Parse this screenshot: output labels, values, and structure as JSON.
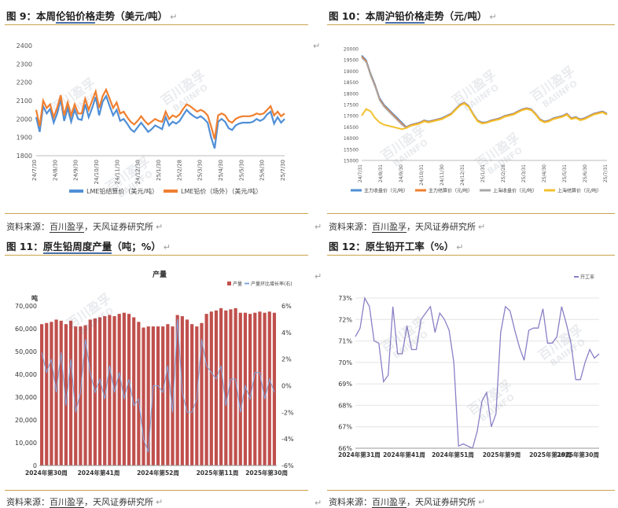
{
  "captions": [
    {
      "prefix": "图 9：本周",
      "em": "伦铅价格",
      "suffix": "走势（美元/吨）"
    },
    {
      "prefix": "图 10：本周",
      "em": "沪铅价格",
      "suffix": "走势（元/吨）"
    },
    {
      "prefix": "图 11：",
      "em": "原生铅周度产量",
      "suffix": "（吨；%）"
    },
    {
      "prefix": "图 12：原生铅开工率（%）",
      "em": "",
      "suffix": ""
    }
  ],
  "source": {
    "prefix": "资料来源：",
    "em": "百川盈孚",
    "suffix": "，天风证券研究所"
  },
  "para_mark": "↵",
  "watermark": {
    "cn": "百川盈孚",
    "en": "BAIINFO"
  },
  "chart_data": [
    {
      "type": "line",
      "x_ticks": [
        "24/7/30",
        "24/8/30",
        "24/9/30",
        "24/10/30",
        "24/11/30",
        "24/12/30",
        "25/1/30",
        "25/2/28",
        "25/3/30",
        "25/4/30",
        "25/5/30",
        "25/6/30",
        "25/7/30"
      ],
      "ylim": [
        1800,
        2400
      ],
      "y_ticks": [
        1800,
        1900,
        2000,
        2100,
        2200,
        2300,
        2400
      ],
      "legend": "bottom",
      "series": [
        {
          "name": "LME铅结算价（美元/吨）",
          "color": "#4f8fd6",
          "values": [
            2010,
            1930,
            2070,
            2030,
            2055,
            1980,
            2030,
            2110,
            1990,
            2060,
            1985,
            2050,
            2000,
            1995,
            2080,
            2010,
            2060,
            2120,
            2020,
            2095,
            2125,
            2070,
            2020,
            2050,
            1990,
            2000,
            1975,
            1945,
            1930,
            1955,
            1980,
            1955,
            1930,
            1945,
            1965,
            1955,
            1945,
            2010,
            1965,
            1985,
            1975,
            1990,
            2020,
            2050,
            2030,
            2015,
            2005,
            2015,
            2000,
            1980,
            1900,
            1840,
            1985,
            2000,
            1985,
            1950,
            1940,
            1965,
            1975,
            1980,
            1980,
            1980,
            1985,
            2000,
            1990,
            2000,
            2025,
            2040,
            1975,
            2010,
            1980,
            2000
          ]
        },
        {
          "name": "LME铅价（场外）（美元/吨）",
          "color": "#f07f2f",
          "values": [
            2050,
            1960,
            2100,
            2060,
            2080,
            2010,
            2060,
            2130,
            2020,
            2090,
            2020,
            2080,
            2030,
            2030,
            2110,
            2050,
            2100,
            2150,
            2060,
            2125,
            2160,
            2110,
            2060,
            2090,
            2030,
            2040,
            2010,
            1985,
            1970,
            1990,
            2015,
            1990,
            1970,
            1985,
            2000,
            1990,
            1985,
            2040,
            2000,
            2020,
            2010,
            2025,
            2055,
            2080,
            2070,
            2055,
            2040,
            2050,
            2040,
            2020,
            1960,
            1890,
            2020,
            2030,
            2020,
            1990,
            1980,
            2000,
            2010,
            2015,
            2015,
            2015,
            2020,
            2030,
            2025,
            2030,
            2050,
            2070,
            2020,
            2040,
            2015,
            2030
          ]
        }
      ]
    },
    {
      "type": "line",
      "x_ticks": [
        "24/7/31",
        "24/8/31",
        "24/9/30",
        "24/10/31",
        "24/11/30",
        "24/12/31",
        "25/1/31",
        "25/2/28",
        "25/3/31",
        "25/4/30",
        "25/5/31",
        "25/6/30",
        "25/7/31"
      ],
      "ylim": [
        15000,
        20000
      ],
      "y_ticks": [
        15000,
        15500,
        16000,
        16500,
        17000,
        17500,
        18000,
        18500,
        19000,
        19500,
        20000
      ],
      "legend": "bottom",
      "series": [
        {
          "name": "主力收盘价（元/吨）",
          "color": "#4f8fd6",
          "values": [
            19700,
            19500,
            18900,
            18400,
            17800,
            17500,
            17300,
            17100,
            16900,
            16700,
            16500,
            16600,
            16650,
            16700,
            16800,
            16750,
            16800,
            16850,
            16900,
            17000,
            17100,
            17300,
            17500,
            17600,
            17450,
            17100,
            16800,
            16700,
            16720,
            16800,
            16850,
            16900,
            17000,
            17050,
            17100,
            17200,
            17300,
            17350,
            17300,
            17100,
            16850,
            16750,
            16800,
            16900,
            16950,
            17000,
            17100,
            16900,
            16950,
            16850,
            16900,
            17000,
            17100,
            17150,
            17200,
            17100
          ]
        },
        {
          "name": "主力结算价（元/吨）",
          "color": "#f07f2f",
          "values": [
            19650,
            19450,
            18850,
            18350,
            17750,
            17450,
            17250,
            17050,
            16850,
            16650,
            16480,
            16580,
            16630,
            16680,
            16780,
            16730,
            16780,
            16830,
            16880,
            16980,
            17080,
            17280,
            17480,
            17580,
            17430,
            17080,
            16780,
            16680,
            16700,
            16780,
            16830,
            16880,
            16980,
            17030,
            17080,
            17180,
            17280,
            17330,
            17280,
            17080,
            16830,
            16730,
            16780,
            16880,
            16930,
            16980,
            17080,
            16880,
            16930,
            16830,
            16880,
            16980,
            17080,
            17130,
            17180,
            17080
          ]
        },
        {
          "name": "上海收盘价（元/吨）",
          "color": "#a9a9a9",
          "values": [
            19600,
            19400,
            18800,
            18300,
            17700,
            17400,
            17200,
            17000,
            16800,
            16600,
            16450,
            16550,
            16600,
            16650,
            16750,
            16700,
            16750,
            16800,
            16850,
            16950,
            17050,
            17250,
            17450,
            17550,
            17400,
            17050,
            16750,
            16650,
            16680,
            16750,
            16800,
            16850,
            16950,
            17000,
            17050,
            17150,
            17250,
            17300,
            17250,
            17050,
            16800,
            16700,
            16750,
            16850,
            16900,
            16950,
            17050,
            16850,
            16900,
            16800,
            16850,
            16950,
            17050,
            17100,
            17150,
            17050
          ]
        },
        {
          "name": "上海结算价（元/吨）",
          "color": "#f2c12e",
          "values": [
            17000,
            17300,
            17200,
            16900,
            16700,
            16600,
            16550,
            16500,
            16450,
            16400,
            16450,
            16550,
            16600,
            16650,
            16750,
            16700,
            16750,
            16800,
            16850,
            16950,
            17050,
            17250,
            17450,
            17550,
            17400,
            17050,
            16750,
            16650,
            16680,
            16750,
            16800,
            16850,
            16950,
            17000,
            17050,
            17150,
            17250,
            17300,
            17250,
            17050,
            16800,
            16700,
            16750,
            16850,
            16900,
            16950,
            17050,
            16850,
            16900,
            16800,
            16850,
            16950,
            17050,
            17100,
            17150,
            17050
          ]
        }
      ]
    },
    {
      "type": "bar",
      "title": "产量",
      "left_unit": "吨",
      "x_ticks": [
        "2024年第30周",
        "2024年第41周",
        "2024年第52周",
        "2025年第11周",
        "2025年第30周"
      ],
      "ylim": [
        0,
        70000
      ],
      "y_ticks": [
        0,
        10000,
        20000,
        30000,
        40000,
        50000,
        60000,
        70000
      ],
      "y2lim": [
        -6,
        6
      ],
      "y2_ticks": [
        "-6%",
        "-4%",
        "-2%",
        "0%",
        "2%",
        "4%",
        "6%"
      ],
      "legend": "top-right",
      "series": [
        {
          "name": "产量",
          "color": "#c0504d",
          "values": [
            62000,
            62500,
            63000,
            64000,
            63500,
            62000,
            63500,
            61000,
            61000,
            61500,
            64000,
            64500,
            65000,
            65500,
            66000,
            65500,
            66500,
            67000,
            66500,
            65000,
            63000,
            60500,
            61000,
            61000,
            61000,
            61000,
            62000,
            61000,
            66000,
            65500,
            64000,
            62000,
            61000,
            62500,
            66500,
            67500,
            68000,
            69000,
            68000,
            68500,
            69000,
            67000,
            67000,
            66500,
            67000,
            67500,
            67000,
            67500,
            67000
          ]
        },
        {
          "name": "产量环比增长率(右)",
          "color": "#7ea6e0",
          "values": [
            2.5,
            1.0,
            2.0,
            -0.5,
            2.5,
            -1.5,
            2.0,
            -2.0,
            -0.5,
            3.5,
            1.0,
            -0.5,
            0.5,
            -1.0,
            1.5,
            -0.5,
            1.0,
            -1.0,
            0.5,
            -1.5,
            -1.0,
            -4.0,
            -5.0,
            0.0,
            0.0,
            -0.5,
            1.5,
            -2.0,
            5.0,
            -0.5,
            -2.0,
            -2.0,
            -1.0,
            3.5,
            1.5,
            1.0,
            0.5,
            1.5,
            -1.5,
            0.5,
            0.5,
            -2.0,
            0.0,
            -1.0,
            1.0,
            1.0,
            -1.0,
            0.5,
            -0.5
          ]
        }
      ]
    },
    {
      "type": "line",
      "x_ticks": [
        "2024年第31周",
        "2024年第41周",
        "2024年第51周",
        "2025年第9周",
        "2025年第19周",
        "2025年第30周"
      ],
      "ylim": [
        66,
        73
      ],
      "y_ticks": [
        "66%",
        "67%",
        "68%",
        "69%",
        "70%",
        "71%",
        "72%",
        "73%"
      ],
      "legend": "top-right",
      "series": [
        {
          "name": "开工率",
          "color": "#8a7fc6",
          "values": [
            71.2,
            71.6,
            73.0,
            72.6,
            71.0,
            70.9,
            69.1,
            69.4,
            72.6,
            70.4,
            70.4,
            71.7,
            70.6,
            70.6,
            72.0,
            72.3,
            72.6,
            71.4,
            72.3,
            72.0,
            71.5,
            70.0,
            66.1,
            66.2,
            66.1,
            66.0,
            66.8,
            68.2,
            68.6,
            67.0,
            67.6,
            71.4,
            72.6,
            72.4,
            71.5,
            70.7,
            70.1,
            71.5,
            71.6,
            71.6,
            72.5,
            70.9,
            70.9,
            71.2,
            72.6,
            71.8,
            70.9,
            69.2,
            69.2,
            70.0,
            70.6,
            70.2,
            70.4
          ]
        }
      ]
    }
  ]
}
